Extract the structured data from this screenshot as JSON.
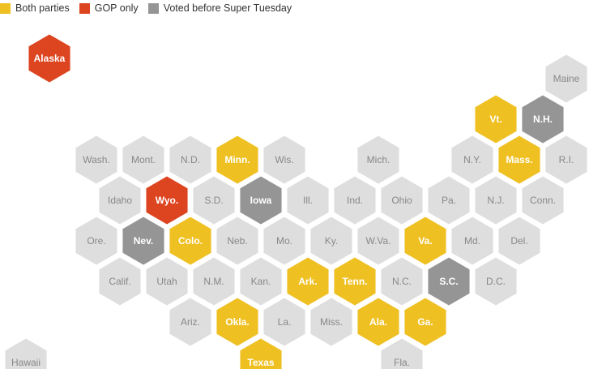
{
  "legend": [
    {
      "key": "both",
      "label": "Both parties"
    },
    {
      "key": "gop",
      "label": "GOP only"
    },
    {
      "key": "before",
      "label": "Voted before Super Tuesday"
    }
  ],
  "colors": {
    "both": "#efc022",
    "gop": "#dd4420",
    "before": "#959595",
    "none": "#dedede",
    "label_dark": "#888888",
    "label_light": "#ffffff"
  },
  "states": [
    {
      "name": "alaska",
      "label": "Alaska",
      "status": "gop",
      "col": 0.5,
      "row": 0
    },
    {
      "name": "maine",
      "label": "Maine",
      "status": "none",
      "col": 11.5,
      "row": 0.5
    },
    {
      "name": "vt",
      "label": "Vt.",
      "status": "both",
      "col": 10,
      "row": 1.5
    },
    {
      "name": "nh",
      "label": "N.H.",
      "status": "before",
      "col": 11,
      "row": 1.5
    },
    {
      "name": "wash",
      "label": "Wash.",
      "status": "none",
      "col": 1.5,
      "row": 2.5
    },
    {
      "name": "mont",
      "label": "Mont.",
      "status": "none",
      "col": 2.5,
      "row": 2.5
    },
    {
      "name": "nd",
      "label": "N.D.",
      "status": "none",
      "col": 3.5,
      "row": 2.5
    },
    {
      "name": "minn",
      "label": "Minn.",
      "status": "both",
      "col": 4.5,
      "row": 2.5
    },
    {
      "name": "wis",
      "label": "Wis.",
      "status": "none",
      "col": 5.5,
      "row": 2.5
    },
    {
      "name": "mich",
      "label": "Mich.",
      "status": "none",
      "col": 7.5,
      "row": 2.5
    },
    {
      "name": "ny",
      "label": "N.Y.",
      "status": "none",
      "col": 9.5,
      "row": 2.5
    },
    {
      "name": "mass",
      "label": "Mass.",
      "status": "both",
      "col": 10.5,
      "row": 2.5
    },
    {
      "name": "ri",
      "label": "R.I.",
      "status": "none",
      "col": 11.5,
      "row": 2.5
    },
    {
      "name": "idaho",
      "label": "Idaho",
      "status": "none",
      "col": 2,
      "row": 3.5
    },
    {
      "name": "wyo",
      "label": "Wyo.",
      "status": "gop",
      "col": 3,
      "row": 3.5
    },
    {
      "name": "sd",
      "label": "S.D.",
      "status": "none",
      "col": 4,
      "row": 3.5
    },
    {
      "name": "iowa",
      "label": "Iowa",
      "status": "before",
      "col": 5,
      "row": 3.5
    },
    {
      "name": "ill",
      "label": "Ill.",
      "status": "none",
      "col": 6,
      "row": 3.5
    },
    {
      "name": "ind",
      "label": "Ind.",
      "status": "none",
      "col": 7,
      "row": 3.5
    },
    {
      "name": "ohio",
      "label": "Ohio",
      "status": "none",
      "col": 8,
      "row": 3.5
    },
    {
      "name": "pa",
      "label": "Pa.",
      "status": "none",
      "col": 9,
      "row": 3.5
    },
    {
      "name": "nj",
      "label": "N.J.",
      "status": "none",
      "col": 10,
      "row": 3.5
    },
    {
      "name": "conn",
      "label": "Conn.",
      "status": "none",
      "col": 11,
      "row": 3.5
    },
    {
      "name": "ore",
      "label": "Ore.",
      "status": "none",
      "col": 1.5,
      "row": 4.5
    },
    {
      "name": "nev",
      "label": "Nev.",
      "status": "before",
      "col": 2.5,
      "row": 4.5
    },
    {
      "name": "colo",
      "label": "Colo.",
      "status": "both",
      "col": 3.5,
      "row": 4.5
    },
    {
      "name": "neb",
      "label": "Neb.",
      "status": "none",
      "col": 4.5,
      "row": 4.5
    },
    {
      "name": "mo",
      "label": "Mo.",
      "status": "none",
      "col": 5.5,
      "row": 4.5
    },
    {
      "name": "ky",
      "label": "Ky.",
      "status": "none",
      "col": 6.5,
      "row": 4.5
    },
    {
      "name": "wva",
      "label": "W.Va.",
      "status": "none",
      "col": 7.5,
      "row": 4.5
    },
    {
      "name": "va",
      "label": "Va.",
      "status": "both",
      "col": 8.5,
      "row": 4.5
    },
    {
      "name": "md",
      "label": "Md.",
      "status": "none",
      "col": 9.5,
      "row": 4.5
    },
    {
      "name": "del",
      "label": "Del.",
      "status": "none",
      "col": 10.5,
      "row": 4.5
    },
    {
      "name": "calif",
      "label": "Calif.",
      "status": "none",
      "col": 2,
      "row": 5.5
    },
    {
      "name": "utah",
      "label": "Utah",
      "status": "none",
      "col": 3,
      "row": 5.5
    },
    {
      "name": "nm",
      "label": "N.M.",
      "status": "none",
      "col": 4,
      "row": 5.5
    },
    {
      "name": "kan",
      "label": "Kan.",
      "status": "none",
      "col": 5,
      "row": 5.5
    },
    {
      "name": "ark",
      "label": "Ark.",
      "status": "both",
      "col": 6,
      "row": 5.5
    },
    {
      "name": "tenn",
      "label": "Tenn.",
      "status": "both",
      "col": 7,
      "row": 5.5
    },
    {
      "name": "nc",
      "label": "N.C.",
      "status": "none",
      "col": 8,
      "row": 5.5
    },
    {
      "name": "sc",
      "label": "S.C.",
      "status": "before",
      "col": 9,
      "row": 5.5
    },
    {
      "name": "dc",
      "label": "D.C.",
      "status": "none",
      "col": 10,
      "row": 5.5
    },
    {
      "name": "ariz",
      "label": "Ariz.",
      "status": "none",
      "col": 3.5,
      "row": 6.5
    },
    {
      "name": "okla",
      "label": "Okla.",
      "status": "both",
      "col": 4.5,
      "row": 6.5
    },
    {
      "name": "la",
      "label": "La.",
      "status": "none",
      "col": 5.5,
      "row": 6.5
    },
    {
      "name": "miss",
      "label": "Miss.",
      "status": "none",
      "col": 6.5,
      "row": 6.5
    },
    {
      "name": "ala",
      "label": "Ala.",
      "status": "both",
      "col": 7.5,
      "row": 6.5
    },
    {
      "name": "ga",
      "label": "Ga.",
      "status": "both",
      "col": 8.5,
      "row": 6.5
    },
    {
      "name": "hawaii",
      "label": "Hawaii",
      "status": "none",
      "col": 0,
      "row": 7.5
    },
    {
      "name": "texas",
      "label": "Texas",
      "status": "both",
      "col": 5,
      "row": 7.5
    },
    {
      "name": "fla",
      "label": "Fla.",
      "status": "none",
      "col": 8,
      "row": 7.5
    }
  ]
}
